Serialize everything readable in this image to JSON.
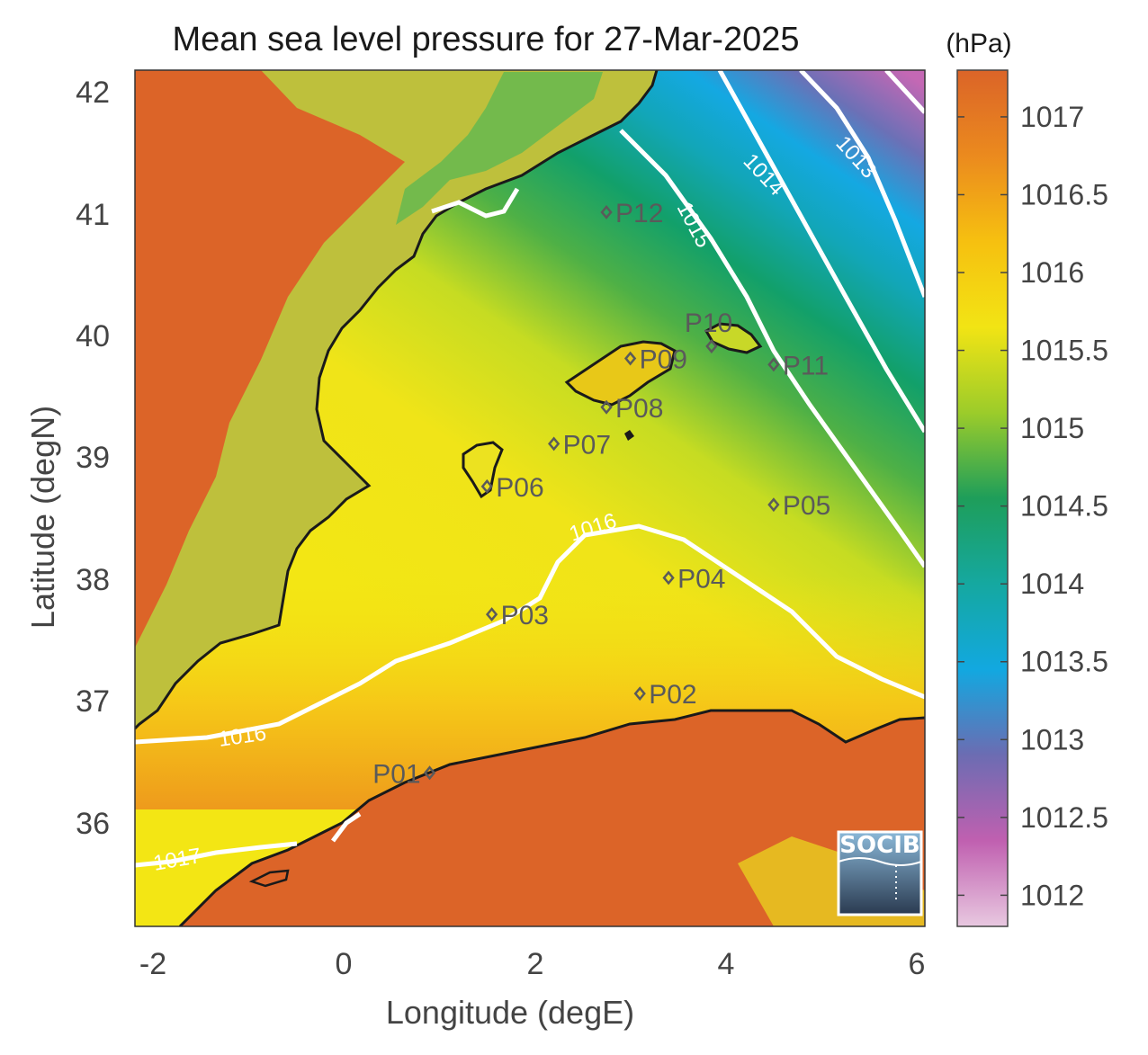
{
  "title": "Mean sea level pressure for 27-Mar-2025",
  "units": "(hPa)",
  "xlabel": "Longitude (degE)",
  "ylabel": "Latitude (degN)",
  "x_ticks": [
    "-2",
    "0",
    "2",
    "4",
    "6"
  ],
  "y_ticks": [
    "42",
    "41",
    "40",
    "39",
    "38",
    "37",
    "36"
  ],
  "colorbar": {
    "range": [
      1011.8,
      1017.3
    ],
    "ticks": [
      "1017",
      "1016.5",
      "1016",
      "1015.5",
      "1015",
      "1014.5",
      "1014",
      "1013.5",
      "1013",
      "1012.5",
      "1012"
    ]
  },
  "contour_labels": [
    "1013",
    "1014",
    "1015",
    "1016",
    "1016",
    "1017"
  ],
  "stations": [
    {
      "id": "P01",
      "lon": 0.9,
      "lat": 36.5
    },
    {
      "id": "P02",
      "lon": 3.1,
      "lat": 37.15
    },
    {
      "id": "P03",
      "lon": 1.55,
      "lat": 37.8
    },
    {
      "id": "P04",
      "lon": 3.4,
      "lat": 38.1
    },
    {
      "id": "P05",
      "lon": 4.5,
      "lat": 38.7
    },
    {
      "id": "P06",
      "lon": 1.5,
      "lat": 38.85
    },
    {
      "id": "P07",
      "lon": 2.2,
      "lat": 39.2
    },
    {
      "id": "P08",
      "lon": 2.75,
      "lat": 39.5
    },
    {
      "id": "P09",
      "lon": 3.0,
      "lat": 39.9
    },
    {
      "id": "P10",
      "lon": 3.85,
      "lat": 40.0
    },
    {
      "id": "P11",
      "lon": 4.5,
      "lat": 39.85
    },
    {
      "id": "P12",
      "lon": 2.75,
      "lat": 41.1
    }
  ],
  "logo": "SOCIB",
  "colors": {
    "land_high": "#dc6428",
    "sea_yellow": "#f2e414",
    "sea_green": "#1aa064",
    "sea_blue": "#12a8e0",
    "high_purple": "#8a5aa8",
    "contour": "#ffffff",
    "coast": "#1a1a1a"
  }
}
